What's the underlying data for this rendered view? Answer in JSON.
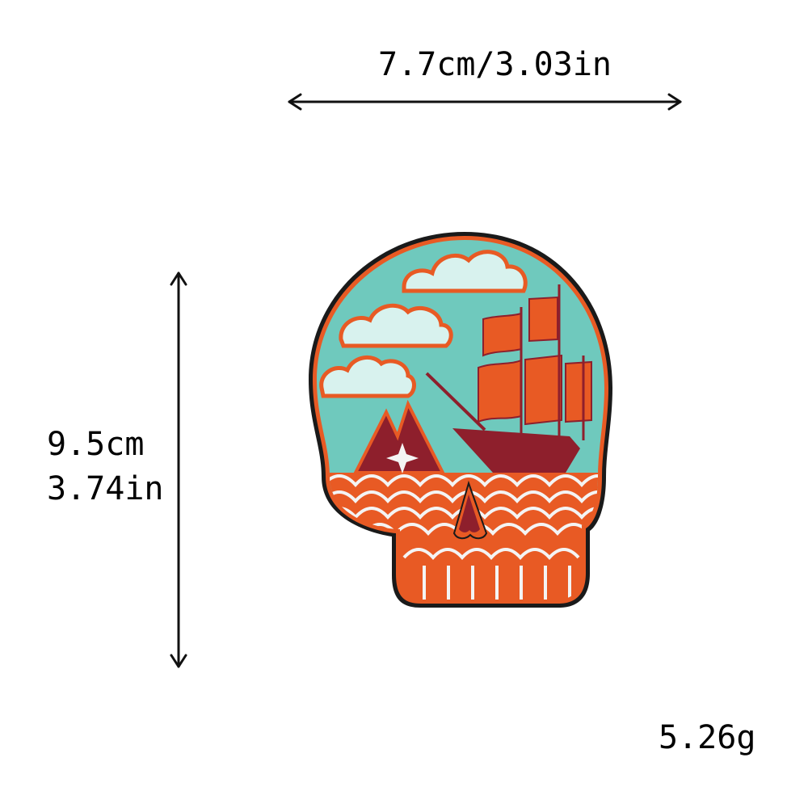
{
  "dimensions": {
    "width_label": "7.7cm/3.03in",
    "height_cm_label": "9.5cm",
    "height_in_label": "3.74in",
    "weight_label": "5.26g"
  },
  "colors": {
    "background": "#ffffff",
    "text": "#000000",
    "patch_border": "#1a1a1a",
    "patch_orange": "#e85a24",
    "patch_teal": "#6fc9bd",
    "patch_white": "#f4f4f4",
    "patch_maroon": "#8e1f2c"
  },
  "icons": [
    "width-arrow-icon",
    "height-arrow-icon",
    "skull-patch-image"
  ]
}
